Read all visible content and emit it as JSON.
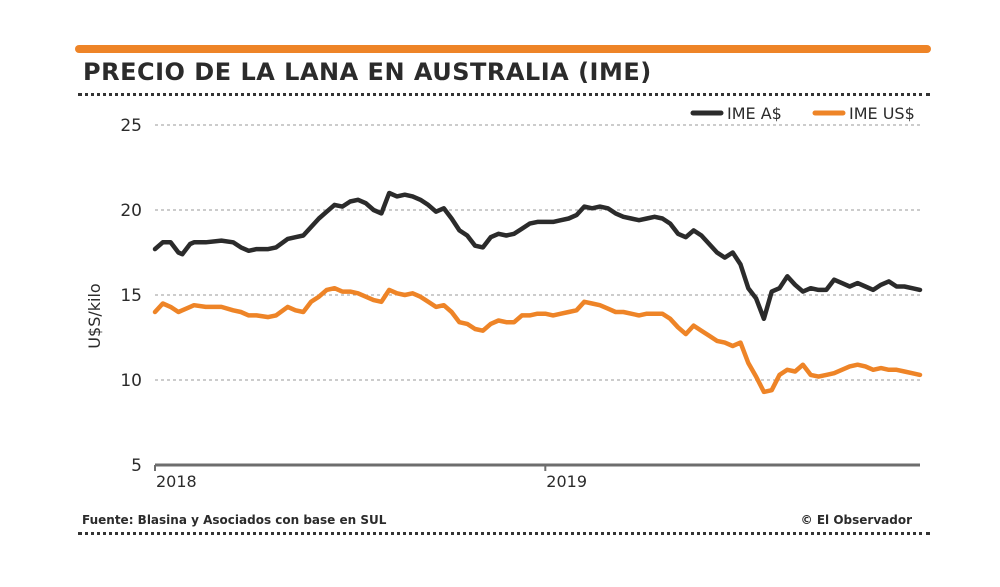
{
  "title": "PRECIO DE LA LANA EN AUSTRALIA (IME)",
  "source": "Fuente: Blasina y Asociados con base en SUL",
  "credit": "© El Observador",
  "colors": {
    "accent_bar": "#ee8427",
    "series_a": "#2b2b2b",
    "series_b": "#ee8427",
    "grid": "#9a9a9a",
    "axis": "#6d6d6d"
  },
  "chart_data": {
    "type": "line",
    "ylabel": "U$S/kilo",
    "xlabel": "",
    "ylim": [
      5,
      25
    ],
    "yticks": [
      5,
      10,
      15,
      20,
      25
    ],
    "xlim": [
      2018.0,
      2019.96
    ],
    "xticks": [
      {
        "value": 2018.0,
        "label": "2018"
      },
      {
        "value": 2019.0,
        "label": "2019"
      }
    ],
    "grid": true,
    "legend_position": "top-right",
    "series": [
      {
        "name": "IME A$",
        "color": "#2b2b2b",
        "x": [
          2018.0,
          2018.02,
          2018.04,
          2018.06,
          2018.07,
          2018.09,
          2018.1,
          2018.13,
          2018.17,
          2018.2,
          2018.22,
          2018.24,
          2018.26,
          2018.29,
          2018.31,
          2018.34,
          2018.36,
          2018.38,
          2018.4,
          2018.42,
          2018.44,
          2018.46,
          2018.48,
          2018.5,
          2018.52,
          2018.54,
          2018.56,
          2018.58,
          2018.6,
          2018.62,
          2018.64,
          2018.66,
          2018.68,
          2018.7,
          2018.72,
          2018.74,
          2018.76,
          2018.78,
          2018.8,
          2018.82,
          2018.84,
          2018.86,
          2018.88,
          2018.9,
          2018.92,
          2018.94,
          2018.96,
          2018.98,
          2019.0,
          2019.02,
          2019.04,
          2019.06,
          2019.08,
          2019.1,
          2019.12,
          2019.14,
          2019.16,
          2019.18,
          2019.2,
          2019.22,
          2019.24,
          2019.26,
          2019.28,
          2019.3,
          2019.32,
          2019.34,
          2019.36,
          2019.38,
          2019.4,
          2019.42,
          2019.44,
          2019.46,
          2019.48,
          2019.5,
          2019.52,
          2019.54,
          2019.56,
          2019.58,
          2019.6,
          2019.62,
          2019.64,
          2019.66,
          2019.68,
          2019.7,
          2019.72,
          2019.74,
          2019.76,
          2019.78,
          2019.8,
          2019.82,
          2019.84,
          2019.86,
          2019.88,
          2019.9,
          2019.92,
          2019.94,
          2019.96
        ],
        "values": [
          17.7,
          18.1,
          18.1,
          17.5,
          17.4,
          18.0,
          18.1,
          18.1,
          18.2,
          18.1,
          17.8,
          17.6,
          17.7,
          17.7,
          17.8,
          18.3,
          18.4,
          18.5,
          19.0,
          19.5,
          19.9,
          20.3,
          20.2,
          20.5,
          20.6,
          20.4,
          20.0,
          19.8,
          21.0,
          20.8,
          20.9,
          20.8,
          20.6,
          20.3,
          19.9,
          20.1,
          19.5,
          18.8,
          18.5,
          17.9,
          17.8,
          18.4,
          18.6,
          18.5,
          18.6,
          18.9,
          19.2,
          19.3,
          19.3,
          19.3,
          19.4,
          19.5,
          19.7,
          20.2,
          20.1,
          20.2,
          20.1,
          19.8,
          19.6,
          19.5,
          19.4,
          19.5,
          19.6,
          19.5,
          19.2,
          18.6,
          18.4,
          18.8,
          18.5,
          18.0,
          17.5,
          17.2,
          17.5,
          16.8,
          15.4,
          14.8,
          13.6,
          15.2,
          15.4,
          16.1,
          15.6,
          15.2,
          15.4,
          15.3,
          15.3,
          15.9,
          15.7,
          15.5,
          15.7,
          15.5,
          15.3,
          15.6,
          15.8,
          15.5,
          15.5,
          15.4,
          15.3
        ]
      },
      {
        "name": "IME US$",
        "color": "#ee8427",
        "x": [
          2018.0,
          2018.02,
          2018.04,
          2018.06,
          2018.07,
          2018.09,
          2018.1,
          2018.13,
          2018.17,
          2018.2,
          2018.22,
          2018.24,
          2018.26,
          2018.29,
          2018.31,
          2018.34,
          2018.36,
          2018.38,
          2018.4,
          2018.42,
          2018.44,
          2018.46,
          2018.48,
          2018.5,
          2018.52,
          2018.54,
          2018.56,
          2018.58,
          2018.6,
          2018.62,
          2018.64,
          2018.66,
          2018.68,
          2018.7,
          2018.72,
          2018.74,
          2018.76,
          2018.78,
          2018.8,
          2018.82,
          2018.84,
          2018.86,
          2018.88,
          2018.9,
          2018.92,
          2018.94,
          2018.96,
          2018.98,
          2019.0,
          2019.02,
          2019.04,
          2019.06,
          2019.08,
          2019.1,
          2019.12,
          2019.14,
          2019.16,
          2019.18,
          2019.2,
          2019.22,
          2019.24,
          2019.26,
          2019.28,
          2019.3,
          2019.32,
          2019.34,
          2019.36,
          2019.38,
          2019.4,
          2019.42,
          2019.44,
          2019.46,
          2019.48,
          2019.5,
          2019.52,
          2019.54,
          2019.56,
          2019.58,
          2019.6,
          2019.62,
          2019.64,
          2019.66,
          2019.68,
          2019.7,
          2019.72,
          2019.74,
          2019.76,
          2019.78,
          2019.8,
          2019.82,
          2019.84,
          2019.86,
          2019.88,
          2019.9,
          2019.92,
          2019.94,
          2019.96
        ],
        "values": [
          14.0,
          14.5,
          14.3,
          14.0,
          14.1,
          14.3,
          14.4,
          14.3,
          14.3,
          14.1,
          14.0,
          13.8,
          13.8,
          13.7,
          13.8,
          14.3,
          14.1,
          14.0,
          14.6,
          14.9,
          15.3,
          15.4,
          15.2,
          15.2,
          15.1,
          14.9,
          14.7,
          14.6,
          15.3,
          15.1,
          15.0,
          15.1,
          14.9,
          14.6,
          14.3,
          14.4,
          14.0,
          13.4,
          13.3,
          13.0,
          12.9,
          13.3,
          13.5,
          13.4,
          13.4,
          13.8,
          13.8,
          13.9,
          13.9,
          13.8,
          13.9,
          14.0,
          14.1,
          14.6,
          14.5,
          14.4,
          14.2,
          14.0,
          14.0,
          13.9,
          13.8,
          13.9,
          13.9,
          13.9,
          13.6,
          13.1,
          12.7,
          13.2,
          12.9,
          12.6,
          12.3,
          12.2,
          12.0,
          12.2,
          11.0,
          10.2,
          9.3,
          9.4,
          10.3,
          10.6,
          10.5,
          10.9,
          10.3,
          10.2,
          10.3,
          10.4,
          10.6,
          10.8,
          10.9,
          10.8,
          10.6,
          10.7,
          10.6,
          10.6,
          10.5,
          10.4,
          10.3
        ]
      }
    ]
  }
}
